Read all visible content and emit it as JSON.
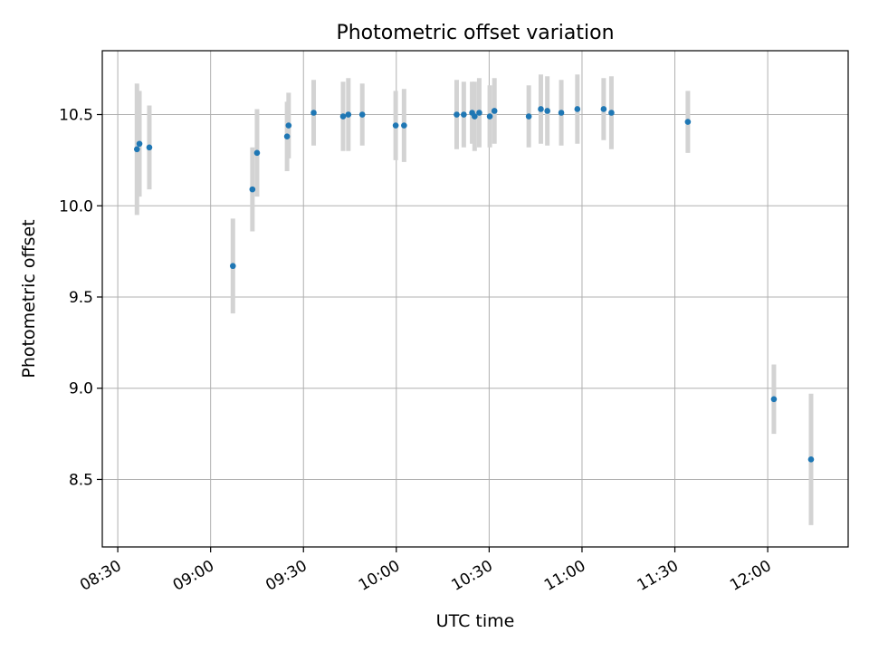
{
  "chart_data": {
    "type": "scatter",
    "title": "Photometric offset variation",
    "xlabel": "UTC time",
    "ylabel": "Photometric offset",
    "x_tick_labels": [
      "08:30",
      "09:00",
      "09:30",
      "10:00",
      "10:30",
      "11:00",
      "11:30",
      "12:00"
    ],
    "y_tick_labels": [
      "8.5",
      "9.0",
      "9.5",
      "10.0",
      "10.5"
    ],
    "x_ticks_min": [
      510,
      540,
      570,
      600,
      630,
      660,
      690,
      720
    ],
    "y_ticks": [
      8.5,
      9.0,
      9.5,
      10.0,
      10.5
    ],
    "xlim_min": [
      505,
      746
    ],
    "ylim": [
      8.13,
      10.85
    ],
    "grid": true,
    "point_color": "#1f77b4",
    "errorbar_color": "#d3d3d3",
    "points": [
      {
        "time": "08:36",
        "t": 516.2,
        "y": 10.31,
        "err": 0.36
      },
      {
        "time": "08:37",
        "t": 517.0,
        "y": 10.34,
        "err": 0.29
      },
      {
        "time": "08:40",
        "t": 520.2,
        "y": 10.32,
        "err": 0.23
      },
      {
        "time": "09:07",
        "t": 547.2,
        "y": 9.67,
        "err": 0.26
      },
      {
        "time": "09:13",
        "t": 553.5,
        "y": 10.09,
        "err": 0.23
      },
      {
        "time": "09:15",
        "t": 555.0,
        "y": 10.29,
        "err": 0.24
      },
      {
        "time": "09:25",
        "t": 564.7,
        "y": 10.38,
        "err": 0.19
      },
      {
        "time": "09:25",
        "t": 565.2,
        "y": 10.44,
        "err": 0.18
      },
      {
        "time": "09:33",
        "t": 573.3,
        "y": 10.51,
        "err": 0.18
      },
      {
        "time": "09:43",
        "t": 582.8,
        "y": 10.49,
        "err": 0.19
      },
      {
        "time": "09:44",
        "t": 584.5,
        "y": 10.5,
        "err": 0.2
      },
      {
        "time": "09:49",
        "t": 589.0,
        "y": 10.5,
        "err": 0.17
      },
      {
        "time": "10:00",
        "t": 599.8,
        "y": 10.44,
        "err": 0.19
      },
      {
        "time": "10:03",
        "t": 602.5,
        "y": 10.44,
        "err": 0.2
      },
      {
        "time": "10:20",
        "t": 619.5,
        "y": 10.5,
        "err": 0.19
      },
      {
        "time": "10:22",
        "t": 621.8,
        "y": 10.5,
        "err": 0.18
      },
      {
        "time": "10:25",
        "t": 624.5,
        "y": 10.51,
        "err": 0.17
      },
      {
        "time": "10:25",
        "t": 625.3,
        "y": 10.49,
        "err": 0.19
      },
      {
        "time": "10:27",
        "t": 626.8,
        "y": 10.51,
        "err": 0.19
      },
      {
        "time": "10:30",
        "t": 630.2,
        "y": 10.49,
        "err": 0.17
      },
      {
        "time": "10:32",
        "t": 631.7,
        "y": 10.52,
        "err": 0.18
      },
      {
        "time": "10:43",
        "t": 642.8,
        "y": 10.49,
        "err": 0.17
      },
      {
        "time": "10:47",
        "t": 646.7,
        "y": 10.53,
        "err": 0.19
      },
      {
        "time": "10:49",
        "t": 648.8,
        "y": 10.52,
        "err": 0.19
      },
      {
        "time": "10:53",
        "t": 653.3,
        "y": 10.51,
        "err": 0.18
      },
      {
        "time": "10:59",
        "t": 658.5,
        "y": 10.53,
        "err": 0.19
      },
      {
        "time": "11:07",
        "t": 667.0,
        "y": 10.53,
        "err": 0.17
      },
      {
        "time": "11:09",
        "t": 669.5,
        "y": 10.51,
        "err": 0.2
      },
      {
        "time": "11:34",
        "t": 694.2,
        "y": 10.46,
        "err": 0.17
      },
      {
        "time": "12:02",
        "t": 722.0,
        "y": 8.94,
        "err": 0.19
      },
      {
        "time": "12:14",
        "t": 734.0,
        "y": 8.61,
        "err": 0.36
      }
    ]
  }
}
